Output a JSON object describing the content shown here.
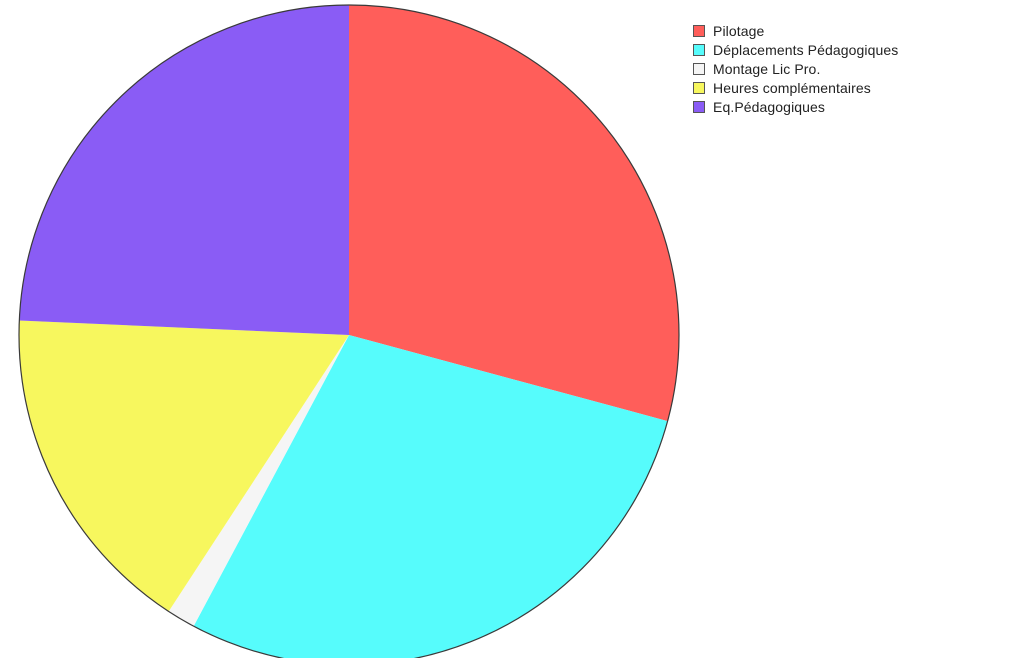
{
  "chart_data": {
    "type": "pie",
    "title": "",
    "legend_position": "top-right",
    "slices": [
      {
        "label": "Pilotage",
        "value": 29.2,
        "color": "#ff5e5a"
      },
      {
        "label": "Déplacements Pédagogiques",
        "value": 28.6,
        "color": "#56fcfc"
      },
      {
        "label": "Montage Lic Pro.",
        "value": 1.4,
        "color": "#f5f5f5"
      },
      {
        "label": "Heures complémentaires",
        "value": 16.5,
        "color": "#f7f75e"
      },
      {
        "label": "Eq.Pédagogiques",
        "value": 24.3,
        "color": "#8a5cf5"
      }
    ]
  }
}
